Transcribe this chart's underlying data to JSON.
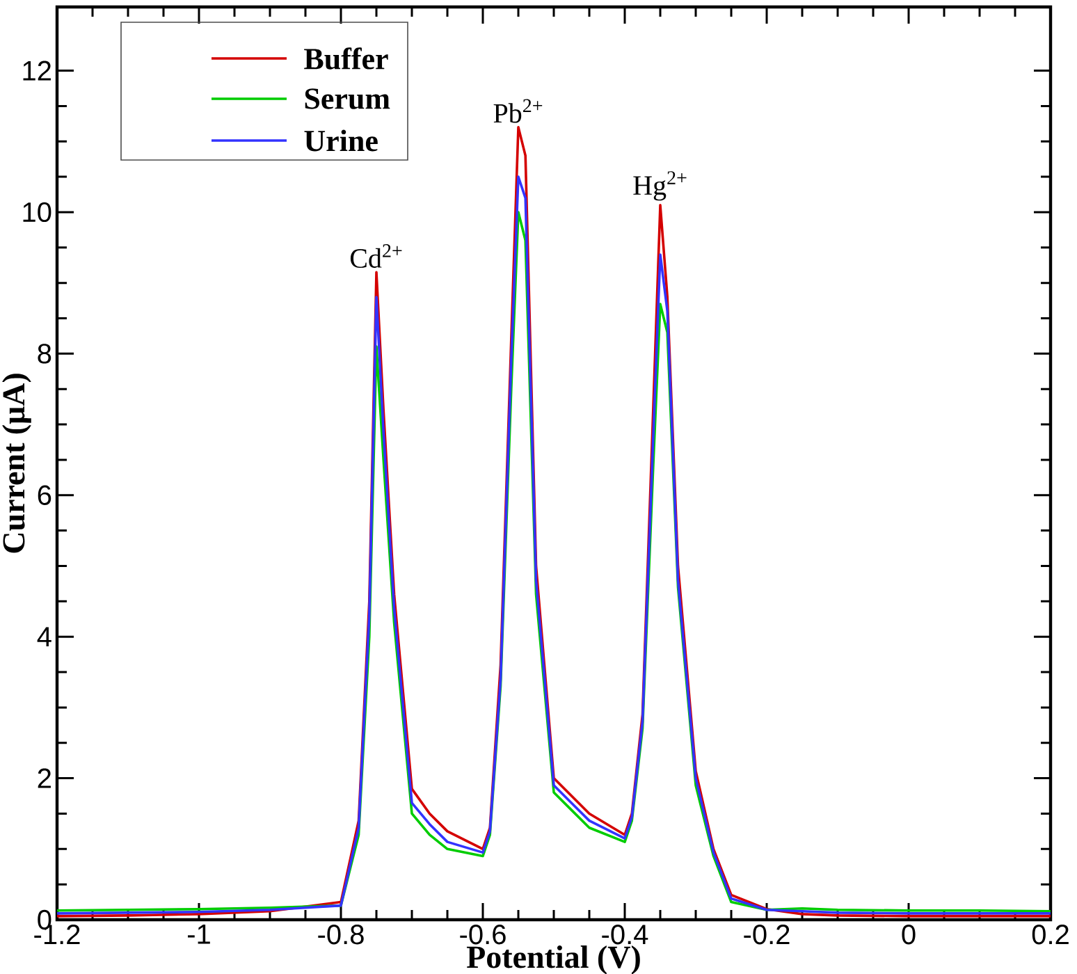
{
  "chart_data": {
    "type": "line",
    "xlabel": "Potential (V)",
    "ylabel": "Current (μA)",
    "xlim": [
      -1.2,
      0.2
    ],
    "ylim": [
      0,
      12.9
    ],
    "xticks": [
      -1.2,
      -1,
      -0.8,
      -0.6,
      -0.4,
      -0.2,
      0,
      0.2
    ],
    "yticks": [
      0,
      2,
      4,
      6,
      8,
      10,
      12
    ],
    "legend": "top left",
    "line_style": "solid",
    "x": [
      -1.2,
      -1.1,
      -1.0,
      -0.9,
      -0.8,
      -0.775,
      -0.76,
      -0.75,
      -0.74,
      -0.725,
      -0.7,
      -0.675,
      -0.65,
      -0.6,
      -0.59,
      -0.575,
      -0.56,
      -0.55,
      -0.54,
      -0.525,
      -0.5,
      -0.475,
      -0.45,
      -0.4,
      -0.39,
      -0.375,
      -0.36,
      -0.35,
      -0.34,
      -0.325,
      -0.3,
      -0.275,
      -0.25,
      -0.2,
      -0.15,
      -0.1,
      0,
      0.1,
      0.2
    ],
    "series": [
      {
        "name": "Buffer",
        "color": "#d40000",
        "values": [
          0.05,
          0.06,
          0.08,
          0.12,
          0.25,
          1.4,
          4.5,
          9.15,
          7.2,
          4.6,
          1.85,
          1.5,
          1.25,
          1.0,
          1.3,
          3.6,
          8.2,
          11.2,
          10.8,
          5.0,
          2.0,
          1.75,
          1.5,
          1.2,
          1.5,
          2.9,
          7.2,
          10.1,
          8.8,
          5.0,
          2.1,
          1.0,
          0.35,
          0.15,
          0.08,
          0.06,
          0.05,
          0.05,
          0.05
        ]
      },
      {
        "name": "Serum",
        "color": "#00cc00",
        "values": [
          0.13,
          0.14,
          0.15,
          0.17,
          0.2,
          1.2,
          4.0,
          8.1,
          6.5,
          4.2,
          1.5,
          1.2,
          1.0,
          0.9,
          1.2,
          3.3,
          7.5,
          10.0,
          9.6,
          4.6,
          1.8,
          1.55,
          1.3,
          1.1,
          1.4,
          2.7,
          6.4,
          8.7,
          8.3,
          4.7,
          1.9,
          0.9,
          0.25,
          0.14,
          0.16,
          0.14,
          0.13,
          0.13,
          0.12
        ]
      },
      {
        "name": "Urine",
        "color": "#3333ff",
        "values": [
          0.09,
          0.1,
          0.11,
          0.14,
          0.2,
          1.3,
          4.3,
          8.8,
          6.9,
          4.4,
          1.65,
          1.35,
          1.1,
          0.95,
          1.25,
          3.4,
          7.9,
          10.5,
          10.2,
          4.8,
          1.9,
          1.65,
          1.4,
          1.15,
          1.45,
          2.8,
          6.8,
          9.4,
          8.6,
          4.8,
          2.0,
          0.95,
          0.3,
          0.14,
          0.12,
          0.1,
          0.09,
          0.09,
          0.09
        ]
      }
    ],
    "annotations": [
      {
        "text": "Cd$^{2+}$",
        "x": -0.75,
        "y": 9.15
      },
      {
        "text": "Pb$^{2+}$",
        "x": -0.55,
        "y": 11.2
      },
      {
        "text": "Hg$^{2+}$",
        "x": -0.35,
        "y": 10.1
      }
    ]
  }
}
